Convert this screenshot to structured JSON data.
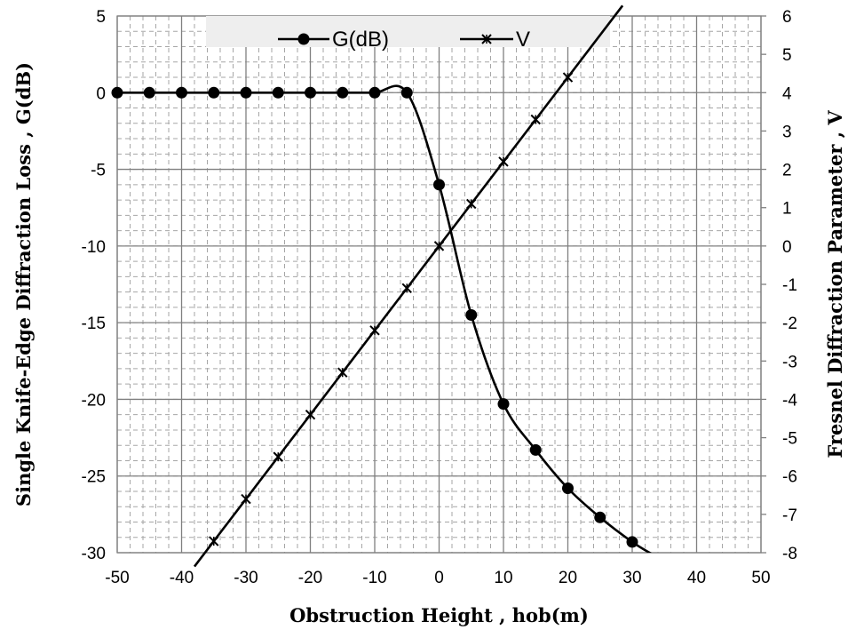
{
  "chart_data": {
    "type": "line",
    "xlabel": "Obstruction Height , hob(m)",
    "ylabel": "Single Knife-Edge Diffraction Loss , G(dB)",
    "y2label": "Fresnel Diffraction Parameter , V",
    "xlim": [
      -50,
      50
    ],
    "ylim": [
      -30,
      5
    ],
    "y2lim": [
      -8,
      6
    ],
    "x_ticks": [
      -50,
      -40,
      -30,
      -20,
      -10,
      0,
      10,
      20,
      30,
      40,
      50
    ],
    "y_ticks": [
      5,
      0,
      -5,
      -10,
      -15,
      -20,
      -25,
      -30
    ],
    "y2_ticks": [
      6,
      5,
      4,
      3,
      2,
      1,
      0,
      -1,
      -2,
      -3,
      -4,
      -5,
      -6,
      -7,
      -8
    ],
    "grid": true,
    "legend_position": "top",
    "series": [
      {
        "name": "G(dB)",
        "axis": "left",
        "marker": "circle",
        "color": "#000000",
        "x": [
          -50,
          -45,
          -40,
          -35,
          -30,
          -25,
          -20,
          -15,
          -10,
          -5,
          0,
          5,
          10,
          15,
          20,
          25,
          30
        ],
        "values": [
          0,
          0,
          0,
          0,
          0,
          0,
          0,
          0,
          0,
          0,
          -6,
          -14.5,
          -20.3,
          -23.3,
          -25.8,
          -27.7,
          -29.3
        ]
      },
      {
        "name": "V",
        "axis": "right",
        "marker": "x",
        "color": "#000000",
        "x": [
          -35,
          -30,
          -25,
          -20,
          -15,
          -10,
          -5,
          0,
          5,
          10,
          15,
          20
        ],
        "values": [
          -7.7,
          -6.6,
          -5.5,
          -4.4,
          -3.3,
          -2.2,
          -1.1,
          0,
          1.1,
          2.2,
          3.3,
          4.4
        ]
      }
    ]
  }
}
